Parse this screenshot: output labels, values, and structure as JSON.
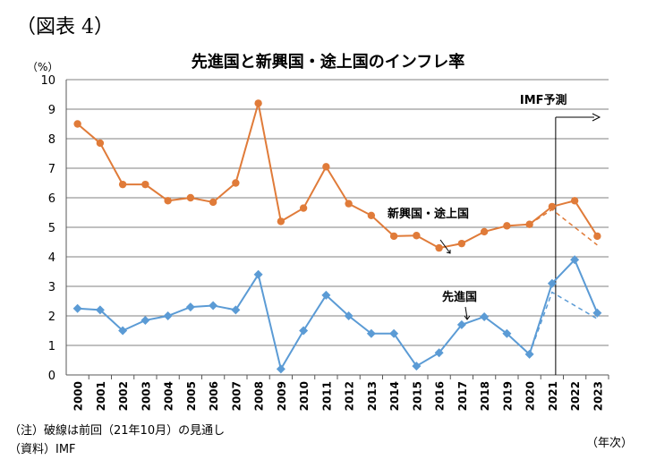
{
  "figure_label": "（図表 4）",
  "title": "先進国と新興国・途上国のインフレ率",
  "y_unit": "（%）",
  "x_unit": "（年次）",
  "note": "（注）破線は前回（21年10月）の見通し",
  "source": "（資料）IMF",
  "annotations": {
    "forecast": "IMF予測",
    "emerging": "新興国・途上国",
    "advanced": "先進国"
  },
  "colors": {
    "emerging": "#E07B39",
    "advanced": "#5B9BD5",
    "grid": "#808080"
  },
  "chart_data": {
    "type": "line",
    "title": "先進国と新興国・途上国のインフレ率",
    "ylabel": "（%）",
    "xlabel": "（年次）",
    "ylim": [
      0,
      10
    ],
    "yticks": [
      "0",
      "1",
      "2",
      "3",
      "4",
      "5",
      "6",
      "7",
      "8",
      "9",
      "10"
    ],
    "grid": true,
    "categories": [
      "2000",
      "2001",
      "2002",
      "2003",
      "2004",
      "2005",
      "2006",
      "2007",
      "2008",
      "2009",
      "2010",
      "2011",
      "2012",
      "2013",
      "2014",
      "2015",
      "2016",
      "2017",
      "2018",
      "2019",
      "2020",
      "2021",
      "2022",
      "2023"
    ],
    "series": [
      {
        "name": "新興国・途上国",
        "values": [
          8.5,
          7.85,
          6.45,
          6.45,
          5.9,
          6.0,
          5.85,
          6.5,
          9.2,
          5.2,
          5.65,
          7.05,
          5.8,
          5.4,
          4.7,
          4.72,
          4.3,
          4.45,
          4.85,
          5.05,
          5.1,
          5.7,
          5.9,
          4.7
        ]
      },
      {
        "name": "先進国",
        "values": [
          2.25,
          2.2,
          1.5,
          1.85,
          2.0,
          2.3,
          2.35,
          2.2,
          3.4,
          0.2,
          1.5,
          2.7,
          2.0,
          1.4,
          1.4,
          0.3,
          0.75,
          1.7,
          1.97,
          1.4,
          0.7,
          3.1,
          3.9,
          2.1
        ]
      }
    ],
    "previous_forecast": [
      {
        "series": "新興国・途上国",
        "x": [
          "2020",
          "2021",
          "2023"
        ],
        "values": [
          5.1,
          5.6,
          4.4
        ]
      },
      {
        "series": "先進国",
        "x": [
          "2020",
          "2021",
          "2023"
        ],
        "values": [
          0.7,
          2.8,
          1.9
        ]
      }
    ]
  }
}
